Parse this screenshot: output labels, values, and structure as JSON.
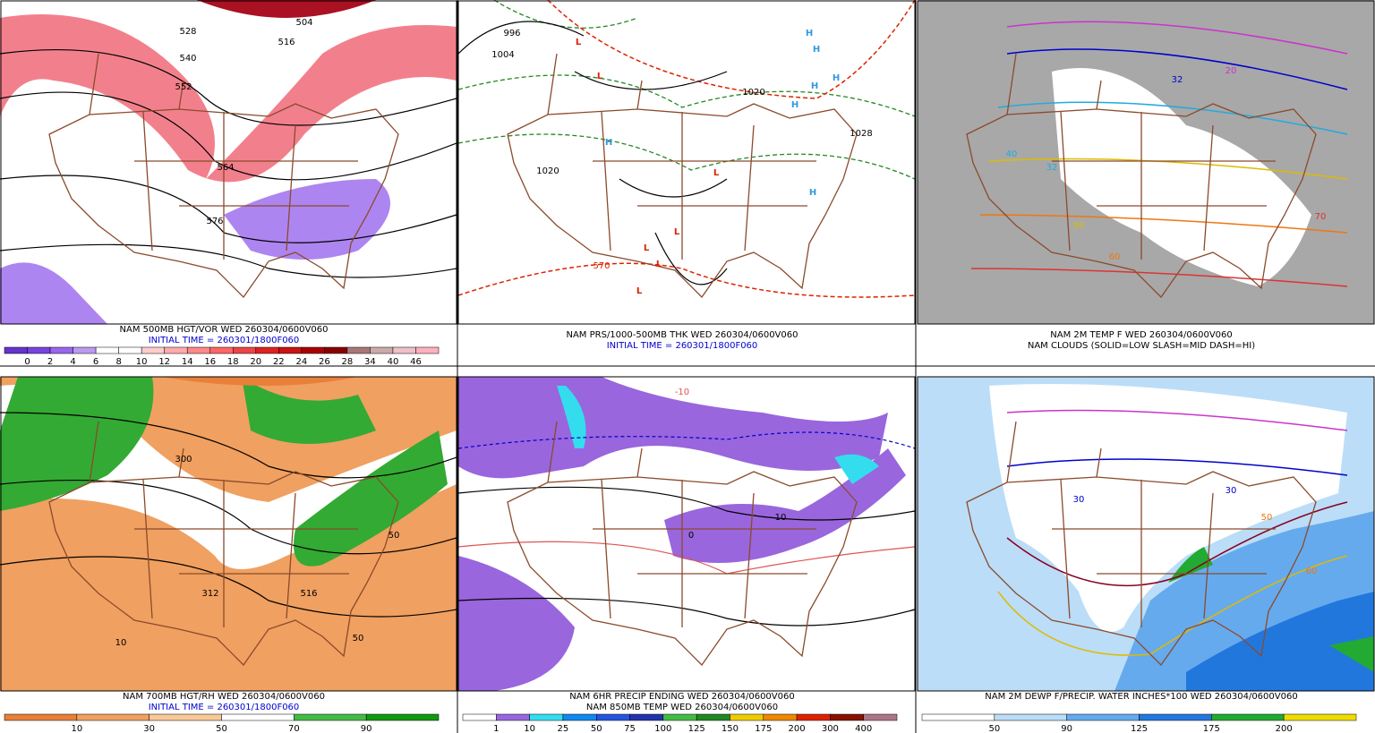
{
  "panels": [
    {
      "caption": [
        "NAM 500MB HGT/VOR WED 260304/0600V060",
        "INITIAL TIME = 260301/1800F060"
      ],
      "caption_colors": [
        "#000000",
        "#0000cc"
      ],
      "map_labels": [
        "528",
        "540",
        "552",
        "564",
        "576",
        "504",
        "516"
      ],
      "colorbar": {
        "labels": [
          0,
          2,
          4,
          6,
          8,
          10,
          12,
          14,
          16,
          18,
          20,
          22,
          24,
          26,
          28,
          34,
          40,
          46
        ],
        "colors": [
          "#6633cc",
          "#7744dd",
          "#9966ee",
          "#bb99f2",
          "#ffffff",
          "#ffffff",
          "#ffcccc",
          "#ffaaaa",
          "#ff8888",
          "#ff6666",
          "#ee4444",
          "#dd2222",
          "#cc1111",
          "#aa0000",
          "#880000",
          "#aa7777",
          "#ccaaaa",
          "#eec0c8",
          "#ffb0c0"
        ]
      }
    },
    {
      "caption": [
        "NAM PRS/1000-500MB THK WED 260304/0600V060",
        "INITIAL TIME = 260301/1800F060"
      ],
      "caption_colors": [
        "#000000",
        "#0000cc"
      ],
      "map_labels": [
        "H",
        "H",
        "H",
        "H",
        "H",
        "H",
        "H",
        "L",
        "L",
        "L",
        "L",
        "L",
        "L",
        "L",
        "996",
        "1004",
        "1020",
        "1020",
        "1028",
        "570"
      ]
    },
    {
      "caption": [
        "NAM 2M TEMP F WED 260304/0600V060",
        "NAM CLOUDS (SOLID=LOW SLASH=MID DASH=HI)"
      ],
      "caption_colors": [
        "#000000",
        "#000000"
      ],
      "map_labels": [
        "32",
        "32",
        "40",
        "50",
        "60",
        "70",
        "20"
      ]
    },
    {
      "caption": [
        "NAM 700MB HGT/RH WED 260304/0600V060",
        "INITIAL TIME = 260301/1800F060"
      ],
      "caption_colors": [
        "#000000",
        "#0000cc"
      ],
      "map_labels": [
        "300",
        "312",
        "516",
        "50",
        "10",
        "50"
      ],
      "colorbar": {
        "labels": [
          10,
          30,
          50,
          70,
          90
        ],
        "colors": [
          "#e8803a",
          "#f0a060",
          "#f8c898",
          "#ffffff",
          "#44bb44",
          "#119911"
        ]
      }
    },
    {
      "caption": [
        "NAM 6HR PRECIP ENDING WED 260304/0600V060",
        "NAM 850MB TEMP WED 260304/0600V060"
      ],
      "caption_colors": [
        "#000000",
        "#000000"
      ],
      "map_labels": [
        "0",
        "10",
        "-10"
      ],
      "colorbar": {
        "labels": [
          1,
          10,
          25,
          50,
          75,
          100,
          125,
          150,
          175,
          200,
          300,
          400
        ],
        "colors": [
          "#ffffff",
          "#9966dd",
          "#33ddee",
          "#1188ee",
          "#2255dd",
          "#2233aa",
          "#44bb44",
          "#228822",
          "#eecc00",
          "#ee8800",
          "#dd2200",
          "#881100",
          "#aa7788"
        ]
      }
    },
    {
      "caption": [
        "NAM 2M DEWP F/PRECIP. WATER INCHES*100 WED 260304/0600V060"
      ],
      "caption_colors": [
        "#000000"
      ],
      "map_labels": [
        "30",
        "30",
        "50",
        "60"
      ],
      "colorbar": {
        "labels": [
          50,
          90,
          125,
          175,
          200
        ],
        "colors": [
          "#ffffff",
          "#bbddf8",
          "#66aaee",
          "#2277dd",
          "#22aa33",
          "#eedd00"
        ]
      }
    }
  ]
}
